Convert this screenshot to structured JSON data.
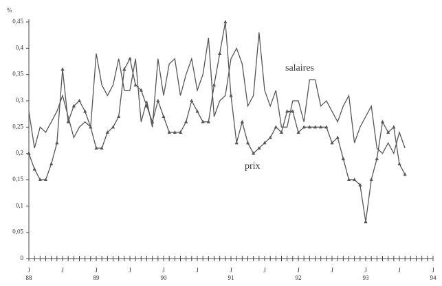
{
  "chart_data": {
    "type": "line",
    "y_label": "%",
    "categories": [
      "J 88",
      null,
      null,
      null,
      null,
      null,
      "J",
      null,
      null,
      null,
      null,
      null,
      "J 89",
      null,
      null,
      null,
      null,
      null,
      "J",
      null,
      null,
      null,
      null,
      null,
      "J 90",
      null,
      null,
      null,
      null,
      null,
      "J",
      null,
      null,
      null,
      null,
      null,
      "J 91",
      null,
      null,
      null,
      null,
      null,
      "J",
      null,
      null,
      null,
      null,
      null,
      "J 92",
      null,
      null,
      null,
      null,
      null,
      "J",
      null,
      null,
      null,
      null,
      null,
      "J 93",
      null,
      null,
      null,
      null,
      null,
      "J",
      null,
      null,
      null,
      null,
      null,
      "J 94"
    ],
    "series": [
      {
        "name": "salaires",
        "color": "#555555",
        "marker": false,
        "values": [
          0.28,
          0.21,
          0.25,
          0.24,
          0.26,
          0.28,
          0.31,
          0.27,
          0.23,
          0.25,
          0.26,
          0.25,
          0.39,
          0.33,
          0.31,
          0.33,
          0.38,
          0.32,
          0.32,
          0.38,
          0.26,
          0.3,
          0.25,
          0.38,
          0.31,
          0.37,
          0.38,
          0.31,
          0.35,
          0.38,
          0.32,
          0.35,
          0.42,
          0.27,
          0.3,
          0.31,
          0.38,
          0.4,
          0.37,
          0.29,
          0.31,
          0.43,
          0.32,
          0.29,
          0.32,
          0.25,
          0.25,
          0.3,
          0.3,
          0.26,
          0.34,
          0.34,
          0.29,
          0.3,
          0.28,
          0.26,
          0.29,
          0.31,
          0.22,
          0.25,
          0.27,
          0.29,
          0.21,
          0.2,
          0.22,
          0.2,
          0.24,
          0.21,
          null,
          null,
          null,
          null,
          null
        ]
      },
      {
        "name": "prix",
        "color": "#555555",
        "marker": true,
        "values": [
          0.2,
          0.17,
          0.15,
          0.15,
          0.18,
          0.22,
          0.36,
          0.26,
          0.29,
          0.3,
          0.28,
          0.25,
          0.21,
          0.21,
          0.24,
          0.25,
          0.27,
          0.36,
          0.38,
          0.33,
          0.32,
          0.29,
          0.26,
          0.3,
          0.27,
          0.24,
          0.24,
          0.24,
          0.26,
          0.3,
          0.28,
          0.26,
          0.26,
          0.33,
          0.39,
          0.45,
          0.31,
          0.22,
          0.26,
          0.22,
          0.2,
          0.21,
          0.22,
          0.23,
          0.25,
          0.24,
          0.28,
          0.28,
          0.24,
          0.25,
          0.25,
          0.25,
          0.25,
          0.25,
          0.22,
          0.23,
          0.19,
          0.15,
          0.15,
          0.14,
          0.07,
          0.15,
          0.19,
          0.26,
          0.24,
          0.25,
          0.18,
          0.16,
          null,
          null,
          null,
          null,
          null
        ]
      }
    ],
    "ylim": [
      0,
      0.45
    ],
    "yticks": [
      0,
      {
        "value": 0.05,
        "label": "0,05"
      },
      {
        "value": 0.1,
        "label": "0,1"
      },
      {
        "value": 0.15,
        "label": "0,15"
      },
      {
        "value": 0.2,
        "label": "0,2"
      },
      {
        "value": 0.25,
        "label": "0,25"
      },
      {
        "value": 0.3,
        "label": "0,3"
      },
      {
        "value": 0.35,
        "label": "0,35"
      },
      {
        "value": 0.4,
        "label": "0,4"
      },
      {
        "value": 0.45,
        "label": "0,45"
      }
    ],
    "grid": false
  }
}
